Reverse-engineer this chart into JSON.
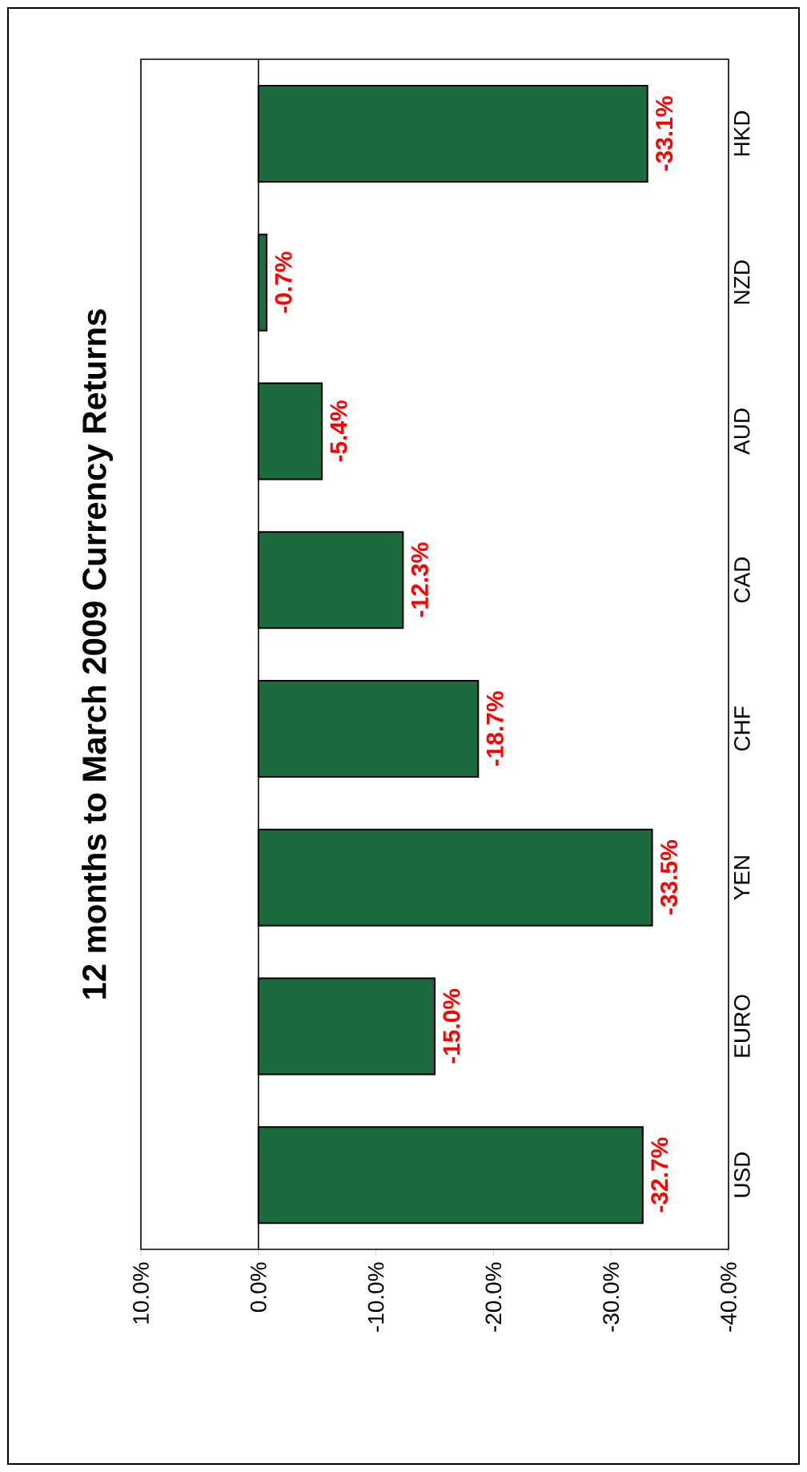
{
  "chart_data": {
    "type": "bar",
    "orientation": "horizontal",
    "title": "12 months to March 2009 Currency Returns",
    "categories": [
      "HKD",
      "NZD",
      "AUD",
      "CAD",
      "CHF",
      "YEN",
      "EURO",
      "USD"
    ],
    "values": [
      -33.1,
      -0.7,
      -5.4,
      -12.3,
      -18.7,
      -33.5,
      -15.0,
      -32.7
    ],
    "value_labels": [
      "-33.1%",
      "-0.7%",
      "-5.4%",
      "-12.3%",
      "-18.7%",
      "-33.5%",
      "-15.0%",
      "-32.7%"
    ],
    "color": "#1b6b3e",
    "xlim": [
      10,
      -40
    ],
    "xticks": [
      {
        "value": 10,
        "label": "10.0%"
      },
      {
        "value": 0,
        "label": "0.0%"
      },
      {
        "value": -10,
        "label": "-10.0%"
      },
      {
        "value": -20,
        "label": "-20.0%"
      },
      {
        "value": -30,
        "label": "-30.0%"
      },
      {
        "value": -40,
        "label": "-40.0%"
      }
    ],
    "ref_lines": [
      {
        "axis": "x",
        "value": 0
      }
    ]
  }
}
